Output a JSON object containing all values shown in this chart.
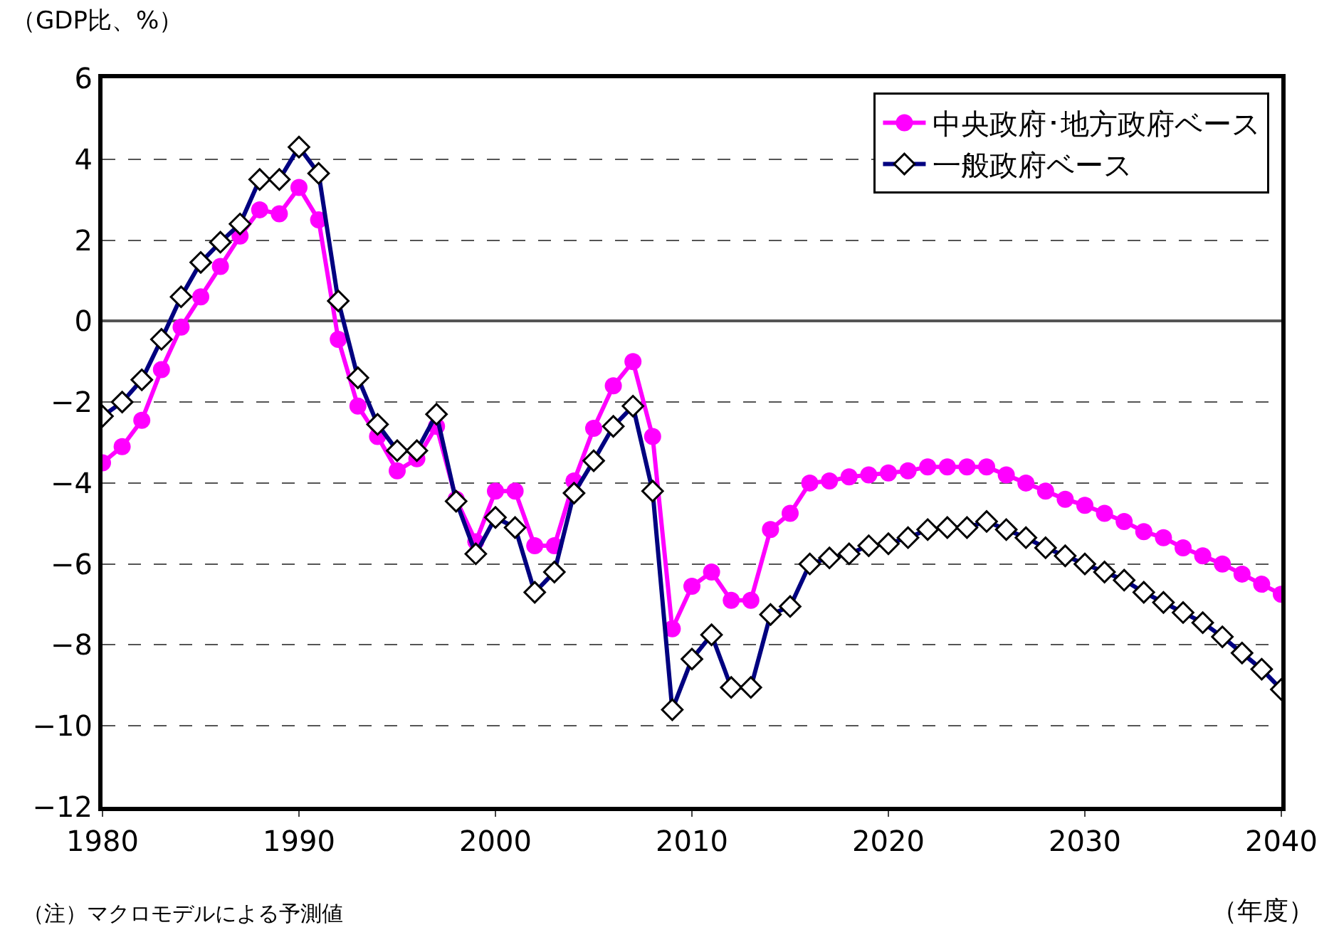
{
  "chart_data": {
    "type": "line",
    "ylabel": "（GDP比、%）",
    "xlabel": "（年度）",
    "annotations": [
      "（注）マクロモデルによる予測値"
    ],
    "x": [
      1980,
      1981,
      1982,
      1983,
      1984,
      1985,
      1986,
      1987,
      1988,
      1989,
      1990,
      1991,
      1992,
      1993,
      1994,
      1995,
      1996,
      1997,
      1998,
      1999,
      2000,
      2001,
      2002,
      2003,
      2004,
      2005,
      2006,
      2007,
      2008,
      2009,
      2010,
      2011,
      2012,
      2013,
      2014,
      2015,
      2016,
      2017,
      2018,
      2019,
      2020,
      2021,
      2022,
      2023,
      2024,
      2025,
      2026,
      2027,
      2028,
      2029,
      2030,
      2031,
      2032,
      2033,
      2034,
      2035,
      2036,
      2037,
      2038,
      2039,
      2040
    ],
    "series": [
      {
        "name": "中央政府･地方政府ベース",
        "color": "#ff00ff",
        "marker": "circle",
        "values": [
          -3.5,
          -3.1,
          -2.45,
          -1.2,
          -0.15,
          0.6,
          1.35,
          2.1,
          2.75,
          2.65,
          3.3,
          2.5,
          -0.45,
          -2.1,
          -2.85,
          -3.7,
          -3.4,
          -2.6,
          -4.4,
          -5.45,
          -4.2,
          -4.2,
          -5.55,
          -5.55,
          -3.95,
          -2.65,
          -1.6,
          -1.0,
          -2.85,
          -7.6,
          -6.55,
          -6.2,
          -6.9,
          -6.9,
          -5.15,
          -4.75,
          -4.0,
          -3.95,
          -3.85,
          -3.8,
          -3.75,
          -3.7,
          -3.6,
          -3.6,
          -3.6,
          -3.6,
          -3.8,
          -4.0,
          -4.2,
          -4.4,
          -4.55,
          -4.75,
          -4.95,
          -5.2,
          -5.35,
          -5.6,
          -5.8,
          -6.0,
          -6.25,
          -6.5,
          -6.75
        ]
      },
      {
        "name": "一般政府ベース",
        "color": "#000080",
        "marker": "diamond",
        "values": [
          -2.35,
          -2.0,
          -1.45,
          -0.45,
          0.6,
          1.45,
          1.95,
          2.4,
          3.5,
          3.5,
          4.3,
          3.65,
          0.5,
          -1.4,
          -2.55,
          -3.2,
          -3.2,
          -2.3,
          -4.45,
          -5.75,
          -4.85,
          -5.1,
          -6.7,
          -6.2,
          -4.25,
          -3.45,
          -2.6,
          -2.1,
          -4.2,
          -9.6,
          -8.35,
          -7.75,
          -9.05,
          -9.05,
          -7.25,
          -7.05,
          -6.0,
          -5.85,
          -5.75,
          -5.55,
          -5.5,
          -5.35,
          -5.15,
          -5.1,
          -5.1,
          -4.95,
          -5.15,
          -5.35,
          -5.6,
          -5.8,
          -6.0,
          -6.2,
          -6.4,
          -6.7,
          -6.95,
          -7.2,
          -7.45,
          -7.8,
          -8.2,
          -8.6,
          -9.1
        ]
      }
    ],
    "xlim": [
      1980,
      2040
    ],
    "xticks": [
      1980,
      1990,
      2000,
      2010,
      2020,
      2030,
      2040
    ],
    "ylim": [
      -12,
      6
    ],
    "yticks": [
      -12,
      -10,
      -8,
      -6,
      -4,
      -2,
      0,
      2,
      4,
      6
    ],
    "grid": "y",
    "legend": "top right",
    "line_style": "solid"
  }
}
